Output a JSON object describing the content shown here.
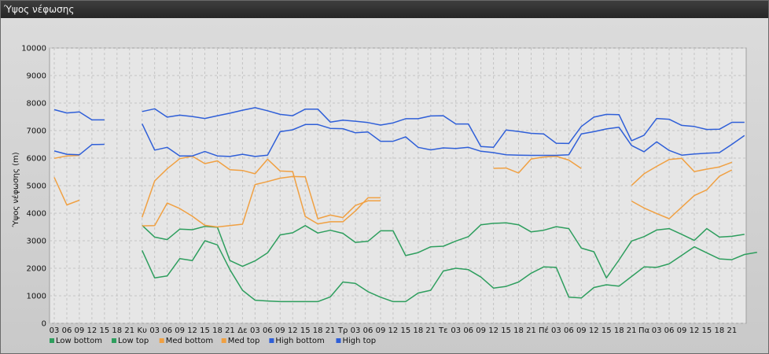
{
  "window_title": "Ύψος νέφωσης",
  "chart_data": {
    "type": "line",
    "title": "",
    "ylabel": "Ύψος νέφωσης (m)",
    "xlabel": "",
    "ylim": [
      0,
      10000
    ],
    "yticks": [
      0,
      1000,
      2000,
      3000,
      4000,
      5000,
      6000,
      7000,
      8000,
      9000,
      10000
    ],
    "grid": true,
    "legend_position": "bottom-left",
    "x_labels": [
      "03",
      "06",
      "09",
      "12",
      "15",
      "18",
      "21",
      "Κυ",
      "03",
      "06",
      "09",
      "12",
      "15",
      "18",
      "21",
      "Δε",
      "03",
      "06",
      "09",
      "12",
      "15",
      "18",
      "21",
      "Τρ",
      "03",
      "06",
      "09",
      "12",
      "15",
      "18",
      "21",
      "Τε",
      "03",
      "06",
      "09",
      "12",
      "15",
      "18",
      "21",
      "Πέ",
      "03",
      "06",
      "09",
      "12",
      "15",
      "18",
      "21",
      "Πα",
      "03",
      "06",
      "09",
      "12",
      "15",
      "18",
      "21"
    ],
    "series": [
      {
        "name": "Low bottom",
        "color": "#2e9e5e",
        "values": [
          null,
          null,
          null,
          null,
          null,
          null,
          null,
          2650,
          1650,
          1720,
          2350,
          2280,
          3000,
          2850,
          1950,
          1200,
          840,
          810,
          790,
          790,
          790,
          790,
          960,
          1500,
          1450,
          1150,
          950,
          790,
          790,
          1100,
          1200,
          1900,
          2000,
          1950,
          1680,
          1280,
          1340,
          1500,
          1820,
          2050,
          2030,
          950,
          920,
          1300,
          1400,
          1350,
          1700,
          2050,
          2030,
          2160,
          2470,
          2780,
          2560,
          2340,
          2310,
          2500,
          2580
        ]
      },
      {
        "name": "Low top",
        "color": "#2e9e5e",
        "values": [
          null,
          null,
          null,
          null,
          null,
          null,
          null,
          3560,
          3130,
          3040,
          3420,
          3400,
          3520,
          3490,
          2280,
          2070,
          2270,
          2560,
          3210,
          3290,
          3550,
          3280,
          3380,
          3270,
          2940,
          2980,
          3360,
          3360,
          2460,
          2570,
          2780,
          2800,
          2990,
          3150,
          3580,
          3630,
          3650,
          3580,
          3320,
          3380,
          3510,
          3440,
          2730,
          2600,
          1650,
          2300,
          2990,
          3150,
          3390,
          3440,
          3230,
          3010,
          3440,
          3130,
          3160,
          3230,
          null
        ]
      },
      {
        "name": "Med bottom",
        "color": "#f0a042",
        "values": [
          5300,
          4300,
          4470,
          null,
          null,
          null,
          null,
          3540,
          3550,
          4370,
          4170,
          3890,
          3560,
          3500,
          3550,
          3600,
          5040,
          5150,
          5270,
          5330,
          5320,
          3800,
          3930,
          3840,
          4280,
          4450,
          4450,
          null,
          null,
          null,
          null,
          null,
          null,
          null,
          null,
          null,
          null,
          null,
          null,
          null,
          null,
          null,
          null,
          null,
          null,
          null,
          4440,
          4190,
          3990,
          3800,
          4220,
          4640,
          4850,
          5340,
          5570,
          null,
          null
        ]
      },
      {
        "name": "Med top",
        "color": "#f0a042",
        "values": [
          5990,
          6080,
          6100,
          null,
          null,
          null,
          null,
          3850,
          5170,
          5610,
          5980,
          6070,
          5800,
          5900,
          5580,
          5550,
          5430,
          5960,
          5530,
          5510,
          3880,
          3610,
          3690,
          3690,
          4080,
          4560,
          4560,
          null,
          null,
          null,
          null,
          null,
          null,
          null,
          null,
          5630,
          5640,
          5460,
          5970,
          6040,
          6070,
          5930,
          5620,
          null,
          null,
          null,
          5010,
          5430,
          5700,
          5950,
          5990,
          5510,
          5600,
          5680,
          5850,
          null,
          null
        ]
      },
      {
        "name": "High bottom",
        "color": "#2f5fd8",
        "values": [
          6260,
          6140,
          6120,
          6490,
          6500,
          null,
          null,
          7250,
          6290,
          6390,
          6080,
          6080,
          6240,
          6080,
          6060,
          6140,
          6060,
          6110,
          6960,
          7030,
          7220,
          7220,
          7080,
          7070,
          6920,
          6950,
          6610,
          6610,
          6770,
          6390,
          6300,
          6370,
          6350,
          6390,
          6250,
          6200,
          6120,
          6110,
          6100,
          6100,
          6100,
          6120,
          6880,
          6960,
          7060,
          7120,
          6460,
          6230,
          6590,
          6280,
          6110,
          6150,
          6180,
          6200,
          6500,
          6820,
          null
        ]
      },
      {
        "name": "High top",
        "color": "#2f5fd8",
        "values": [
          7760,
          7640,
          7680,
          7390,
          7390,
          null,
          null,
          7690,
          7790,
          7490,
          7560,
          7510,
          7440,
          7540,
          7630,
          7740,
          7830,
          7720,
          7590,
          7540,
          7780,
          7780,
          7310,
          7380,
          7340,
          7290,
          7200,
          7280,
          7430,
          7430,
          7530,
          7540,
          7240,
          7240,
          6420,
          6390,
          7020,
          6970,
          6900,
          6880,
          6540,
          6530,
          7150,
          7490,
          7590,
          7580,
          6630,
          6830,
          7440,
          7410,
          7190,
          7150,
          7040,
          7050,
          7300,
          7300,
          null
        ]
      }
    ]
  }
}
